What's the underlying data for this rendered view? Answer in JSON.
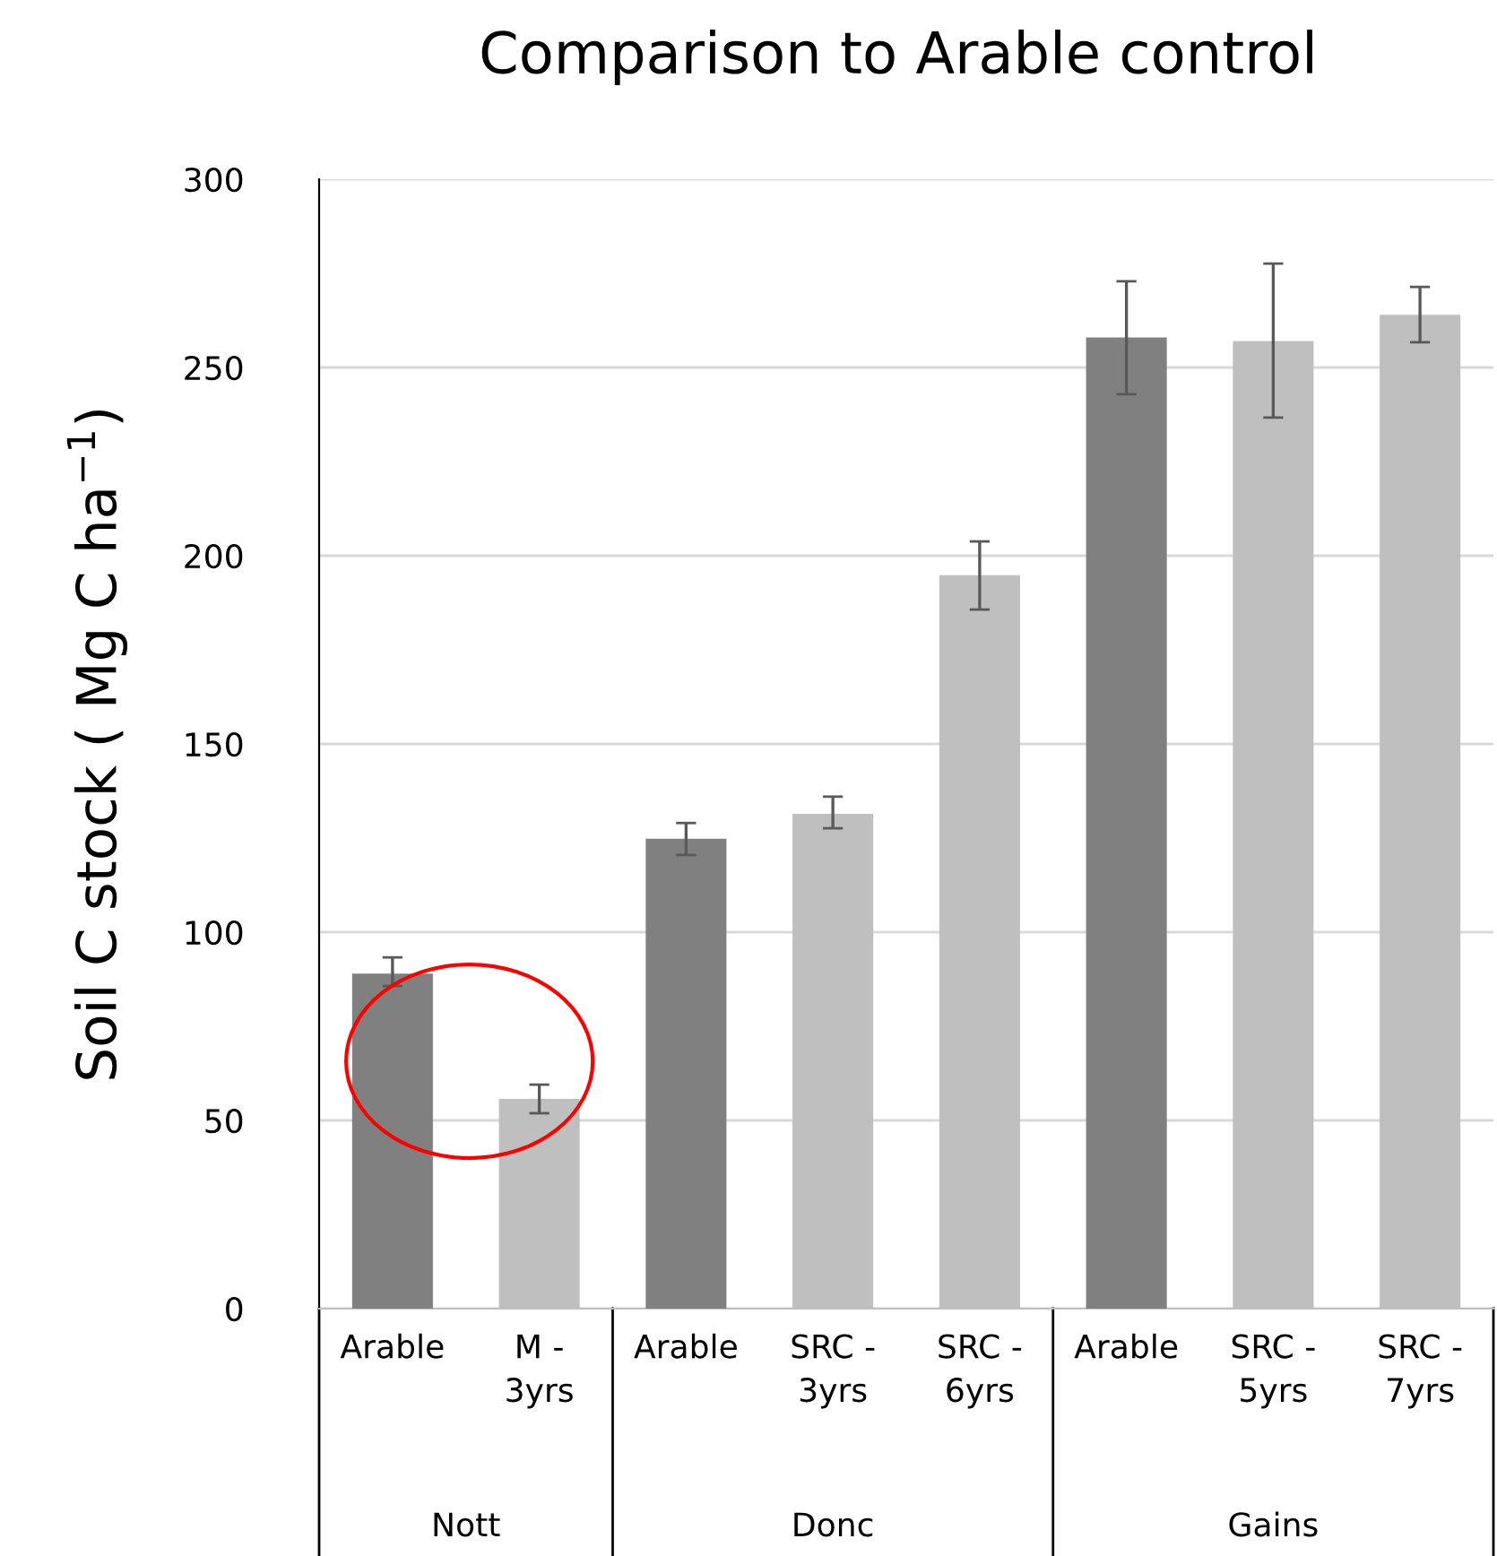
{
  "chart_data": {
    "type": "bar",
    "title": "Comparison to Arable control",
    "ylabel": "Soil C stock ( Mg C ha$^{−1}$)",
    "categories": [
      "Arable",
      "M -\n3yrs",
      "Arable",
      "SRC -\n3yrs",
      "SRC -\n6yrs",
      "Arable",
      "SRC -\n5yrs",
      "SRC -\n7yrs"
    ],
    "values": [
      89,
      55.7,
      124.8,
      131.4,
      194.8,
      258,
      257,
      264
    ],
    "colors": [
      "#808080",
      "#bfbfbf",
      "#808080",
      "#bfbfbf",
      "#bfbfbf",
      "#808080",
      "#bfbfbf",
      "#bfbfbf"
    ],
    "errors": [
      [
        85.7,
        93.3
      ],
      [
        51.9,
        59.5
      ],
      [
        120.5,
        129
      ],
      [
        127.6,
        136
      ],
      [
        185.7,
        203.8
      ],
      [
        242.9,
        272.9
      ],
      [
        236.7,
        277.6
      ],
      [
        256.7,
        271.4
      ]
    ],
    "annotations": [
      "Nott",
      "Donc",
      "Gains"
    ],
    "ylim": [
      0,
      300
    ],
    "yticks": [
      0,
      50,
      100,
      150,
      200,
      250,
      300
    ],
    "grid": "y"
  }
}
